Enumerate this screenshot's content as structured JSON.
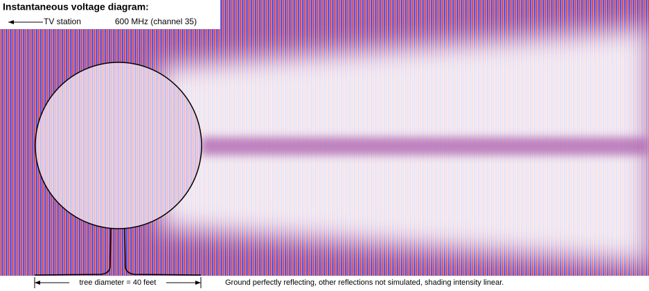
{
  "header": {
    "title": "Instantaneous voltage diagram:",
    "source_label": "TV station",
    "frequency": "600 MHz (channel 35)"
  },
  "footer": {
    "dimension_label": "tree diameter = 40 feet",
    "note": "Ground perfectly reflecting, other reflections not simulated, shading intensity linear."
  }
}
